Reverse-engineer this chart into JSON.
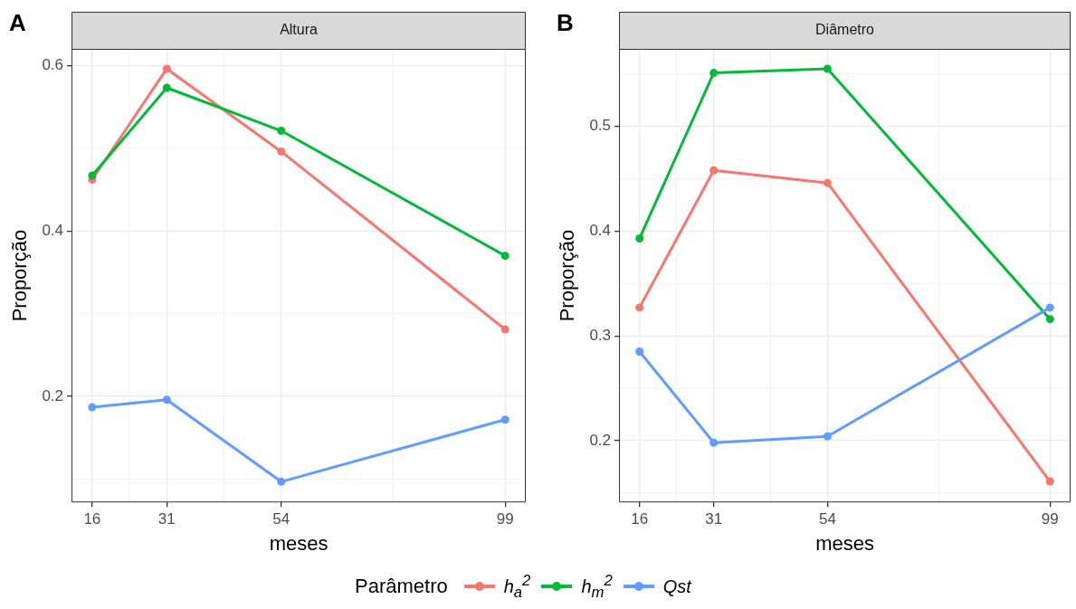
{
  "chart_data": [
    {
      "type": "line",
      "title": "Altura",
      "annotations": [
        "A"
      ],
      "xlabel": "meses",
      "ylabel": "Proporção",
      "x": [
        16,
        31,
        54,
        99
      ],
      "xlim": [
        11.85,
        103.15
      ],
      "xticks": [
        16,
        31,
        54,
        99
      ],
      "ylim": [
        0.072,
        0.62
      ],
      "yticks": [
        0.2,
        0.4,
        0.6
      ],
      "grid": true,
      "marker": "circle",
      "line_style": "solid",
      "series": [
        {
          "color": "#f8766d",
          "values": [
            0.462,
            0.596,
            0.496,
            0.281
          ]
        },
        {
          "color": "#00ba38",
          "values": [
            0.467,
            0.573,
            0.521,
            0.37
          ]
        },
        {
          "color": "#619cff",
          "values": [
            0.187,
            0.196,
            0.097,
            0.172
          ]
        }
      ]
    },
    {
      "type": "line",
      "title": "Diâmetro",
      "annotations": [
        "B"
      ],
      "xlabel": "meses",
      "ylabel": "Proporção",
      "x": [
        16,
        31,
        54,
        99
      ],
      "xlim": [
        11.85,
        103.15
      ],
      "xticks": [
        16,
        31,
        54,
        99
      ],
      "ylim": [
        0.141,
        0.574
      ],
      "yticks": [
        0.2,
        0.3,
        0.4,
        0.5
      ],
      "grid": true,
      "marker": "circle",
      "line_style": "solid",
      "legend": "bottom",
      "legend_title": "Parâmetro",
      "series": [
        {
          "name": "h$_{a}$$^{2}$",
          "color": "#f8766d",
          "values": [
            0.327,
            0.458,
            0.446,
            0.161
          ]
        },
        {
          "name": "h$_{m}$$^{2}$",
          "color": "#00ba38",
          "values": [
            0.393,
            0.551,
            0.555,
            0.316
          ]
        },
        {
          "name": "Qst",
          "color": "#619cff",
          "values": [
            0.285,
            0.198,
            0.204,
            0.327
          ]
        }
      ]
    }
  ]
}
